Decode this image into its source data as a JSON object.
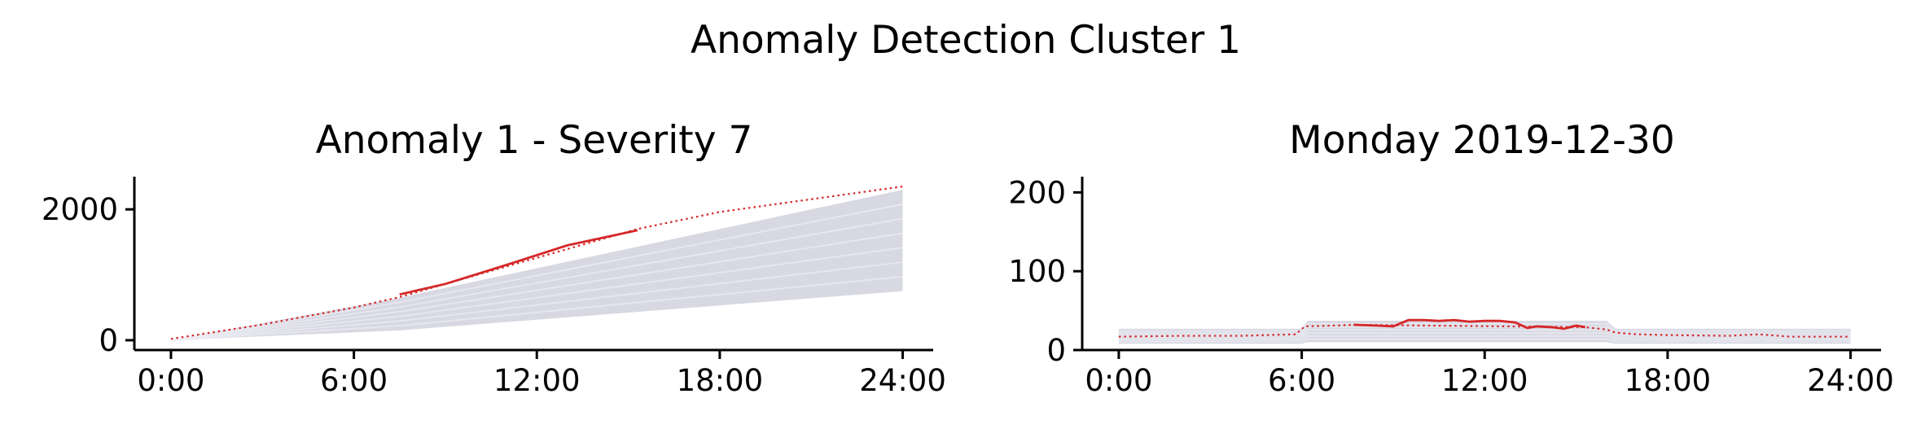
{
  "title": "Anomaly Detection Cluster 1",
  "colors": {
    "anomaly": "#d62728",
    "background": "#d4d4e0"
  },
  "chart_data": [
    {
      "type": "line",
      "title": "Anomaly 1 - Severity 7",
      "xlabel": "",
      "ylabel": "",
      "xticks": [
        "0:00",
        "6:00",
        "12:00",
        "18:00",
        "24:00"
      ],
      "yticks": [
        0,
        2000
      ],
      "xlim": [
        -1.2,
        25
      ],
      "ylim": [
        -150,
        2500
      ],
      "grid": false,
      "series": [
        {
          "role": "background",
          "style": "solid light gray-lavender, many overlapping days",
          "x": [
            0,
            7.5,
            24
          ],
          "y_min": [
            0,
            150,
            750
          ],
          "y_max": [
            0,
            650,
            2300
          ]
        },
        {
          "role": "observed",
          "style": "red solid segment",
          "x": [
            7.5,
            9,
            11,
            13,
            15.3
          ],
          "y": [
            700,
            860,
            1150,
            1450,
            1680
          ]
        },
        {
          "role": "expected",
          "style": "red dotted",
          "x": [
            0,
            3,
            6,
            7.5,
            15.3,
            18,
            24
          ],
          "y": [
            20,
            240,
            500,
            660,
            1700,
            1960,
            2350
          ]
        }
      ]
    },
    {
      "type": "line",
      "title": "Monday 2019-12-30",
      "xlabel": "",
      "ylabel": "",
      "xticks": [
        "0:00",
        "6:00",
        "12:00",
        "18:00",
        "24:00"
      ],
      "yticks": [
        0,
        100,
        200
      ],
      "xlim": [
        -1.2,
        25
      ],
      "ylim": [
        0,
        220
      ],
      "grid": false,
      "series": [
        {
          "role": "background",
          "style": "solid light gray-lavender band",
          "x": [
            0,
            6,
            6.2,
            16,
            16.3,
            24
          ],
          "y_min": [
            8,
            8,
            10,
            10,
            8,
            8
          ],
          "y_max": [
            27,
            27,
            37,
            37,
            27,
            27
          ]
        },
        {
          "role": "observed",
          "style": "red solid segment",
          "x": [
            7.7,
            8.5,
            9,
            9.5,
            10,
            10.5,
            11,
            11.5,
            12,
            12.5,
            13,
            13.4,
            13.7,
            14.2,
            14.6,
            15,
            15.3
          ],
          "y": [
            32,
            31,
            30,
            38,
            38,
            37,
            38,
            36,
            37,
            37,
            35,
            28,
            30,
            29,
            27,
            31,
            29
          ]
        },
        {
          "role": "expected",
          "style": "red dotted",
          "x": [
            0,
            2,
            4,
            5.8,
            6.1,
            7,
            7.7,
            15.3,
            16,
            16.3,
            17,
            18,
            20,
            21,
            22,
            24
          ],
          "y": [
            17,
            18,
            18,
            20,
            30,
            31,
            32,
            29,
            26,
            22,
            20,
            19,
            18,
            20,
            17,
            17
          ]
        }
      ]
    }
  ]
}
